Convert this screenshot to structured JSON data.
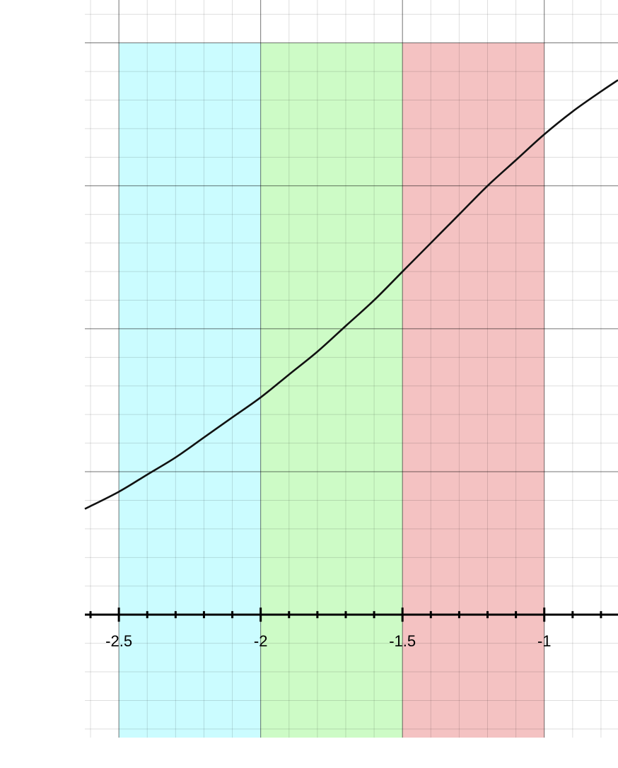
{
  "chart_data": {
    "type": "line",
    "title": "",
    "xlabel": "",
    "ylabel": "",
    "grid": true,
    "xlim": [
      -2.62,
      -0.74
    ],
    "ylim": [
      -0.43,
      2.15
    ],
    "x_ticks": [
      -2.5,
      -2,
      -1.5,
      -1
    ],
    "x_tick_labels": [
      "-2.5",
      "-2",
      "-1.5",
      "-1"
    ],
    "minor_step": 0.1,
    "major_step": 0.5,
    "shaded_regions": [
      {
        "x_from": -2.5,
        "x_to": -2.0,
        "color": "#cbfcff"
      },
      {
        "x_from": -2.0,
        "x_to": -1.5,
        "color": "#cdfbc6"
      },
      {
        "x_from": -1.5,
        "x_to": -1.0,
        "color": "#f4c2c2"
      }
    ],
    "shaded_y_range": [
      -0.43,
      2.0
    ],
    "series": [
      {
        "color": "#111111",
        "x": [
          -2.62,
          -2.5,
          -2.4,
          -2.3,
          -2.2,
          -2.1,
          -2.0,
          -1.9,
          -1.8,
          -1.7,
          -1.6,
          -1.5,
          -1.4,
          -1.3,
          -1.2,
          -1.1,
          -1.0,
          -0.9,
          -0.8,
          -0.74
        ],
        "y": [
          0.37,
          0.43,
          0.49,
          0.55,
          0.62,
          0.69,
          0.76,
          0.84,
          0.92,
          1.01,
          1.1,
          1.2,
          1.3,
          1.4,
          1.5,
          1.59,
          1.68,
          1.76,
          1.83,
          1.87
        ]
      }
    ]
  }
}
